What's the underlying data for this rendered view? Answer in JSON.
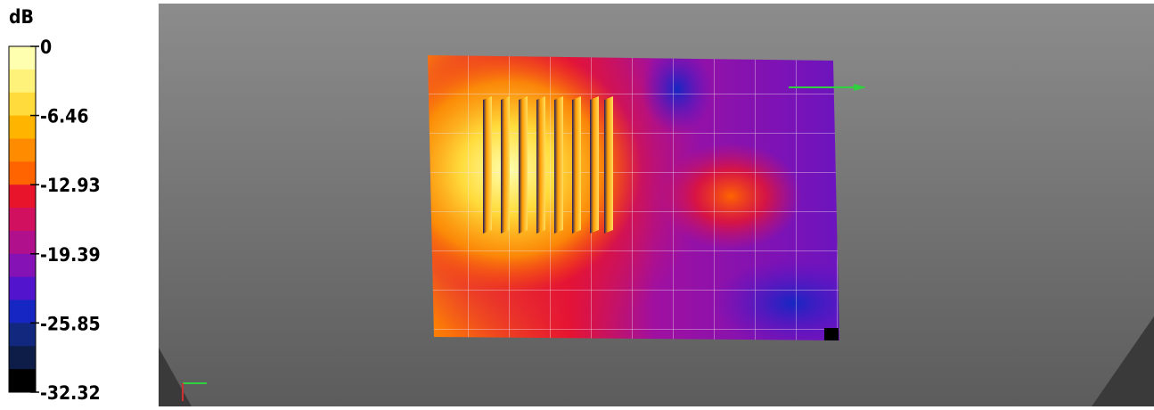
{
  "legend": {
    "unit": "dB",
    "ticks": [
      0,
      -6.46,
      -12.93,
      -19.39,
      -25.85,
      -32.32
    ],
    "colors": [
      "#ffffb0",
      "#fff27a",
      "#ffdc3c",
      "#ffb400",
      "#ff8c00",
      "#ff6400",
      "#e8142c",
      "#d21060",
      "#b0108c",
      "#8412b4",
      "#5214cc",
      "#1626c2",
      "#12287e",
      "#0e1c48",
      "#000000"
    ]
  }
}
